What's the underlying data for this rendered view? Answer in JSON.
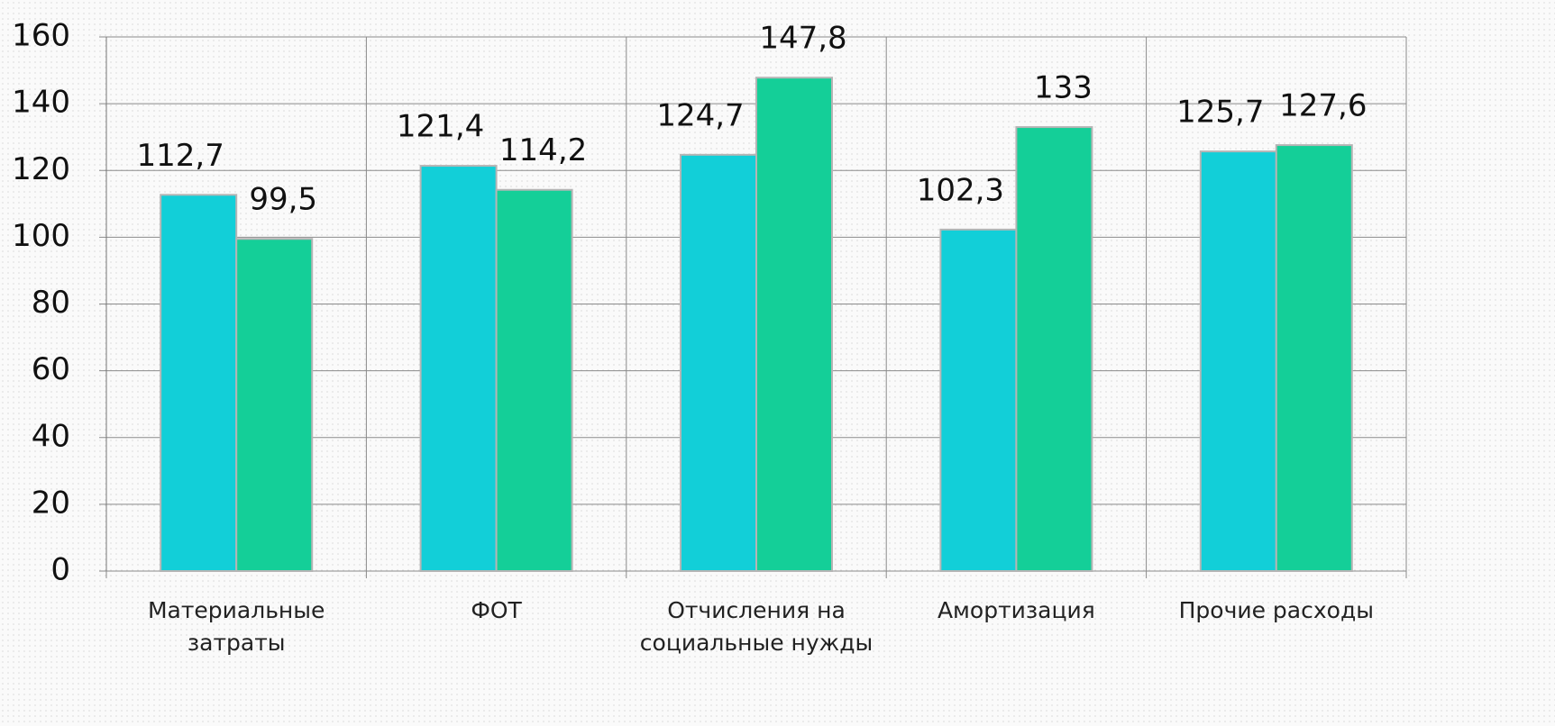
{
  "chart_data": {
    "type": "bar",
    "categories": [
      "Материальные затраты",
      "ФОТ",
      "Отчисления на социальные нужды",
      "Амортизация",
      "Прочие расходы"
    ],
    "series": [
      {
        "color": "#12cfd8",
        "values": [
          112.7,
          121.4,
          124.7,
          102.3,
          125.7
        ],
        "value_labels": [
          "112,7",
          "121,4",
          "124,7",
          "102,3",
          "125,7"
        ]
      },
      {
        "color": "#14cf98",
        "values": [
          99.5,
          114.2,
          147.8,
          133,
          127.6
        ],
        "value_labels": [
          "99,5",
          "114,2",
          "147,8",
          "133",
          "127,6"
        ]
      }
    ],
    "ylim": [
      0,
      160
    ],
    "yticks": [
      0,
      20,
      40,
      60,
      80,
      100,
      120,
      140,
      160
    ],
    "grid": true
  }
}
